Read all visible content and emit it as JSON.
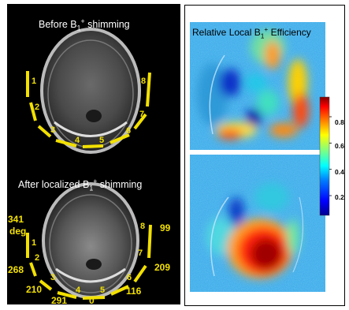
{
  "left_panel": {
    "top_title": "Before B1+ shimming",
    "bottom_title": "After localized B1+ shimming",
    "top_coil_labels": [
      "1",
      "2",
      "3",
      "4",
      "5",
      "6",
      "7",
      "8"
    ],
    "bottom_coil_labels": [
      "1",
      "2",
      "3",
      "4",
      "5",
      "6",
      "7",
      "8"
    ],
    "phases": {
      "coil1": "341",
      "unit": "deg",
      "coil2": "268",
      "coil3": "210",
      "coil4": "291",
      "coil5": "0",
      "coil6": "116",
      "coil7": "209",
      "coil8": "99"
    }
  },
  "right_panel": {
    "title": "Relative Local B1+ Efficiency",
    "colorbar_ticks": [
      "0.8",
      "0.6",
      "0.4",
      "0.2"
    ],
    "colorbar_tick_values": [
      0.8,
      0.6,
      0.4,
      0.2
    ],
    "colorbar_range": [
      0.05,
      0.95
    ],
    "colormap": [
      "#00008f",
      "#0000ff",
      "#0080ff",
      "#00ffff",
      "#80ff80",
      "#ffff00",
      "#ff8000",
      "#ff0000",
      "#800000"
    ]
  }
}
